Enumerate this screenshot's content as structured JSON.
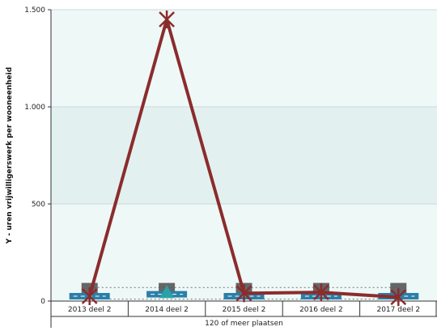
{
  "chart_data": {
    "type": "line",
    "title": "",
    "ylabel": "Y - uren vrijwilligerswerk per wooneenheid",
    "xlabel": "",
    "group_label": "120 of meer plaatsen",
    "categories": [
      "2013 deel 2",
      "2014 deel 2",
      "2015 deel 2",
      "2016 deel 2",
      "2017 deel 2"
    ],
    "ylim": [
      0,
      1500
    ],
    "y_ticks": [
      0,
      500,
      1000,
      1500
    ],
    "y_tick_labels": [
      "0",
      "500",
      "1.000",
      "1.500"
    ],
    "grid": true,
    "legend": "none",
    "bands": [
      {
        "from": 0,
        "to": 500,
        "color": "#eef8f7"
      },
      {
        "from": 500,
        "to": 1000,
        "color": "#e2f1f0"
      },
      {
        "from": 1000,
        "to": 1500,
        "color": "#eef8f7"
      }
    ],
    "series": [
      {
        "type": "line",
        "values": [
          25,
          1450,
          40,
          45,
          20
        ],
        "color": "#8b2c2c",
        "marker": "asterisk"
      },
      {
        "type": "marker",
        "values": [
          60,
          60,
          60,
          60,
          60
        ],
        "color": "#555555",
        "marker": "square"
      },
      {
        "type": "marker",
        "values": [
          25,
          35,
          25,
          25,
          25
        ],
        "color": "#2a7fa8",
        "marker": "bar-dash"
      },
      {
        "type": "marker",
        "values": [
          45,
          45,
          45,
          45,
          45
        ],
        "color": "#2aa0a8",
        "marker": "triangle"
      },
      {
        "type": "dashed-line",
        "values": [
          70,
          70,
          70,
          70,
          70
        ],
        "color": "#777777"
      },
      {
        "type": "dashed-line",
        "values": [
          10,
          10,
          10,
          10,
          10
        ],
        "color": "#777777"
      }
    ]
  }
}
